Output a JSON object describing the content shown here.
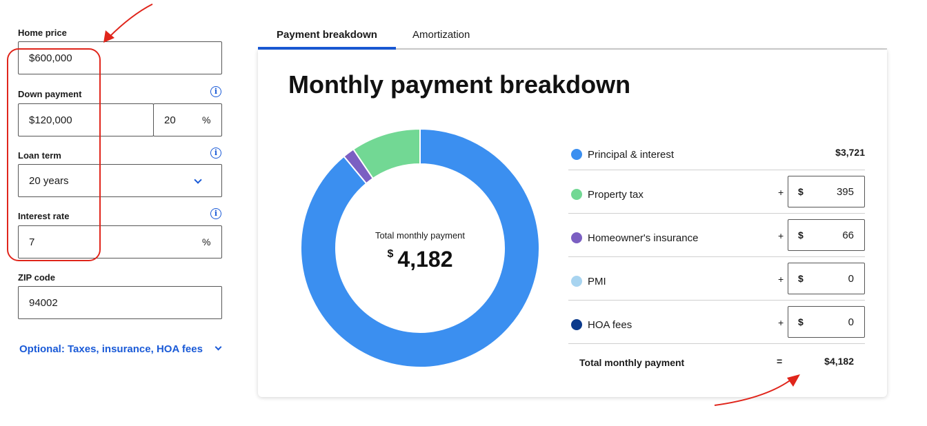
{
  "form": {
    "home_price": {
      "label": "Home price",
      "value": "$600,000"
    },
    "down_payment": {
      "label": "Down payment",
      "value": "$120,000",
      "percent": "20",
      "percent_unit": "%"
    },
    "loan_term": {
      "label": "Loan term",
      "value": "20 years"
    },
    "interest_rate": {
      "label": "Interest rate",
      "value": "7",
      "unit": "%"
    },
    "zip_code": {
      "label": "ZIP code",
      "value": "94002"
    },
    "optional_link": "Optional: Taxes, insurance, HOA fees",
    "info_glyph": "i"
  },
  "tabs": [
    {
      "label": "Payment breakdown",
      "active": true
    },
    {
      "label": "Amortization",
      "active": false
    }
  ],
  "card": {
    "title": "Monthly payment breakdown",
    "donut": {
      "center_label": "Total monthly payment",
      "currency": "$",
      "center_value": "4,182"
    }
  },
  "breakdown": {
    "principal_interest": {
      "label": "Principal & interest",
      "value": "$3,721"
    },
    "property_tax": {
      "label": "Property tax",
      "plus": "+",
      "currency": "$",
      "value": "395"
    },
    "homeowners_insurance": {
      "label": "Homeowner's insurance",
      "plus": "+",
      "currency": "$",
      "value": "66"
    },
    "pmi": {
      "label": "PMI",
      "plus": "+",
      "currency": "$",
      "value": "0"
    },
    "hoa_fees": {
      "label": "HOA fees",
      "plus": "+",
      "currency": "$",
      "value": "0"
    },
    "total": {
      "label": "Total monthly payment",
      "eq": "=",
      "value": "$4,182"
    }
  },
  "chart_data": {
    "type": "pie",
    "categories": [
      "Principal & interest",
      "Property tax",
      "Homeowner's insurance",
      "PMI",
      "HOA fees"
    ],
    "values": [
      3721,
      395,
      66,
      0,
      0
    ],
    "colors": [
      "#3b8ff0",
      "#72d894",
      "#7b5fc2",
      "#a8d4f0",
      "#0b3a8c"
    ],
    "title": "Monthly payment breakdown"
  },
  "colors": {
    "accent": "#1a5ad7",
    "principal_interest": "#3b8ff0",
    "property_tax": "#72d894",
    "homeowners_insurance": "#7b5fc2",
    "pmi": "#a8d4f0",
    "hoa_fees": "#0b3a8c",
    "annotation": "#e0251b"
  }
}
